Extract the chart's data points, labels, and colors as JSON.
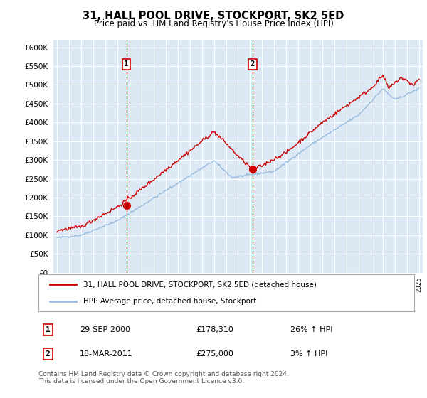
{
  "title": "31, HALL POOL DRIVE, STOCKPORT, SK2 5ED",
  "subtitle": "Price paid vs. HM Land Registry's House Price Index (HPI)",
  "legend_line1": "31, HALL POOL DRIVE, STOCKPORT, SK2 5ED (detached house)",
  "legend_line2": "HPI: Average price, detached house, Stockport",
  "sale1_date": "29-SEP-2000",
  "sale1_price": "£178,310",
  "sale1_hpi": "26% ↑ HPI",
  "sale2_date": "18-MAR-2011",
  "sale2_price": "£275,000",
  "sale2_hpi": "3% ↑ HPI",
  "footer": "Contains HM Land Registry data © Crown copyright and database right 2024.\nThis data is licensed under the Open Government Licence v3.0.",
  "background_color": "#ffffff",
  "plot_bg_color": "#dce9f5",
  "grid_color": "#e8e8e8",
  "red_line_color": "#cc0000",
  "blue_line_color": "#99bbdd",
  "sale1_x": 2000.75,
  "sale1_y": 178310,
  "sale2_x": 2011.2,
  "sale2_y": 275000,
  "ylim": [
    0,
    620000
  ],
  "xlim_start": 1994.7,
  "xlim_end": 2025.3
}
